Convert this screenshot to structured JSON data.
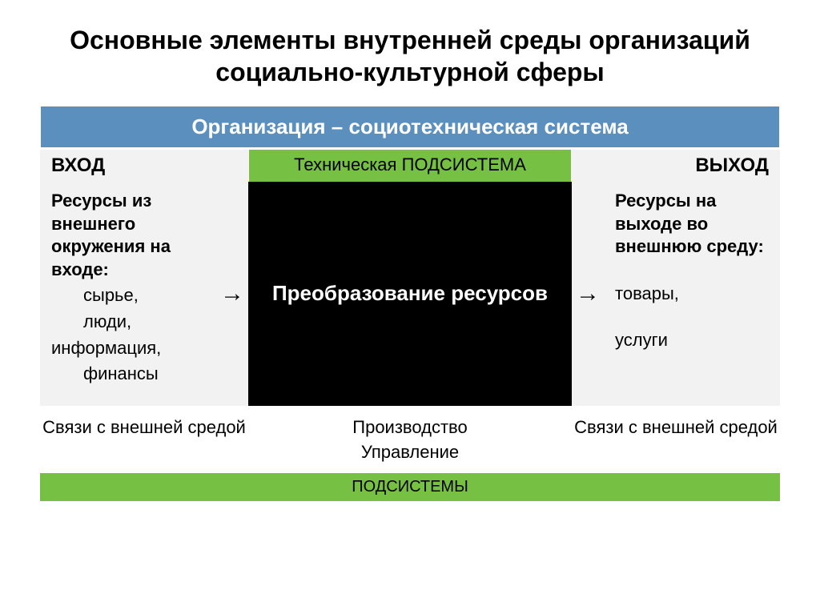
{
  "title": "Основные элементы внутренней среды организаций социально-культурной сферы",
  "banner_blue": "Организация – социотехническая система",
  "header": {
    "left": "ВХОД",
    "center": "Техническая ПОДСИСТЕМА",
    "right": "ВЫХОД"
  },
  "body": {
    "left_bold": "Ресурсы из внешнего окружения на входе:",
    "left_sub1": "сырье,",
    "left_sub2": "люди,",
    "left_sub3": "информация,",
    "left_sub4": "финансы",
    "center": "Преобразование ресурсов",
    "right_bold": "Ресурсы на выходе во внешнюю среду:",
    "right_sub1": "товары,",
    "right_sub2": "услуги",
    "arrow": "→"
  },
  "footer": {
    "left": "Связи с внешней средой",
    "mid_line1": "Производство",
    "mid_line2": "Управление",
    "right": "Связи с внешней средой"
  },
  "banner_green": "ПОДСИСТЕМЫ",
  "colors": {
    "blue": "#5b8fbd",
    "green": "#76c043",
    "gray": "#f2f2f2",
    "black": "#000000",
    "white": "#ffffff"
  }
}
